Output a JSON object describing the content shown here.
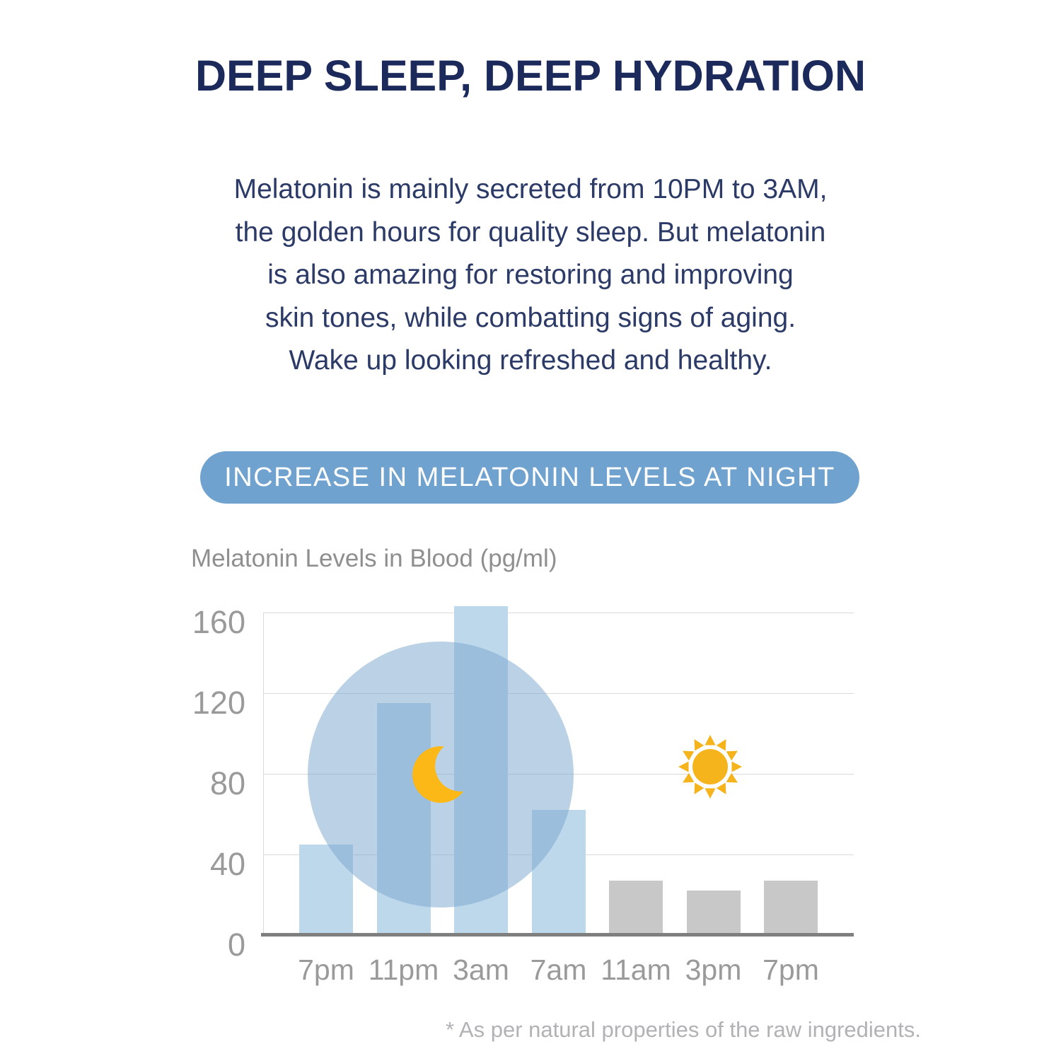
{
  "title": {
    "text": "DEEP SLEEP, DEEP HYDRATION",
    "color": "#1b2a5b"
  },
  "intro": {
    "color": "#2b3a66",
    "lines": [
      "Melatonin is mainly secreted from 10PM to 3AM,",
      "the golden hours for quality sleep. But melatonin",
      "is also amazing for restoring and improving",
      "skin tones, while combatting signs of aging.",
      "Wake up looking refreshed and healthy."
    ]
  },
  "badge": {
    "label": "INCREASE IN MELATONIN LEVELS AT NIGHT",
    "bg_color": "#6fa2ce",
    "text_color": "#ffffff"
  },
  "chart_data": {
    "type": "bar",
    "title": "Melatonin Levels in Blood (pg/ml)",
    "categories": [
      "7pm",
      "11pm",
      "3am",
      "7am",
      "11am",
      "3pm",
      "7pm"
    ],
    "values": [
      44,
      114,
      162,
      61,
      26,
      21,
      26
    ],
    "groups": [
      "night",
      "night",
      "night",
      "night",
      "day",
      "day",
      "day"
    ],
    "yticks": [
      0,
      40,
      80,
      120,
      160
    ],
    "ylim": [
      0,
      168
    ],
    "xlabel": "",
    "ylabel": "Melatonin Levels in Blood (pg/ml)",
    "grid": true,
    "legend": "none",
    "colors": {
      "night_bar": "#bdd7eb",
      "day_bar": "#c8c8c8",
      "night_circle": "#78a5cd",
      "night_circle_opacity": 0.5,
      "moon": "#fbb817",
      "sun": "#f5b31c",
      "gridline": "#dadada",
      "axis": "#7f7f7f",
      "tick_text": "#9a9a9a"
    },
    "annotations": [
      {
        "name": "night-highlight-circle",
        "meaning": "night period highlight"
      },
      {
        "name": "moon-icon",
        "meaning": "night"
      },
      {
        "name": "sun-icon",
        "meaning": "day"
      }
    ]
  },
  "footnote": {
    "text": "* As per natural properties of the raw ingredients.",
    "color": "#b2b2b5"
  }
}
